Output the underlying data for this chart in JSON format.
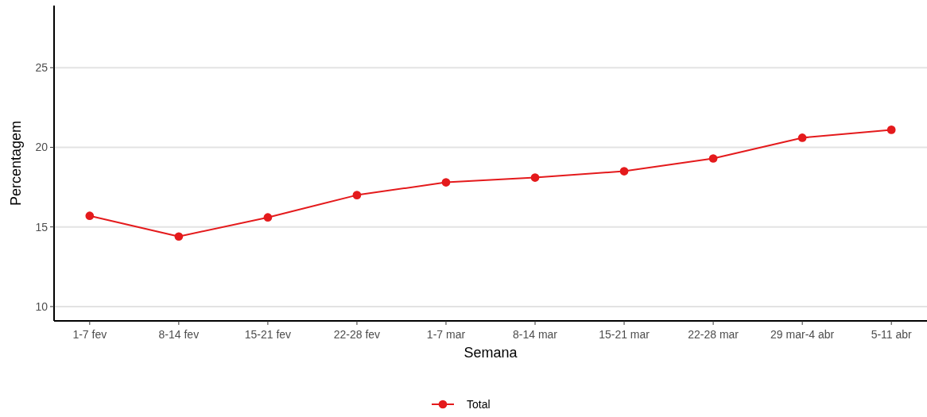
{
  "chart_data": {
    "type": "line",
    "xlabel": "Semana",
    "ylabel": "Percentagem",
    "categories": [
      "1-7 fev",
      "8-14 fev",
      "15-21 fev",
      "22-28 fev",
      "1-7 mar",
      "8-14 mar",
      "15-21 mar",
      "22-28 mar",
      "29 mar-4 abr",
      "5-11 abr"
    ],
    "series": [
      {
        "name": "Total",
        "color": "#e41a1c",
        "values": [
          15.7,
          14.4,
          15.6,
          17.0,
          17.8,
          18.1,
          18.5,
          19.3,
          20.6,
          21.1
        ]
      }
    ],
    "ylim": [
      9.1,
      28.9
    ],
    "yticks": [
      10,
      15,
      20,
      25
    ],
    "grid": "y",
    "legend": "bottom",
    "marker": "circle",
    "line_style": "solid"
  }
}
